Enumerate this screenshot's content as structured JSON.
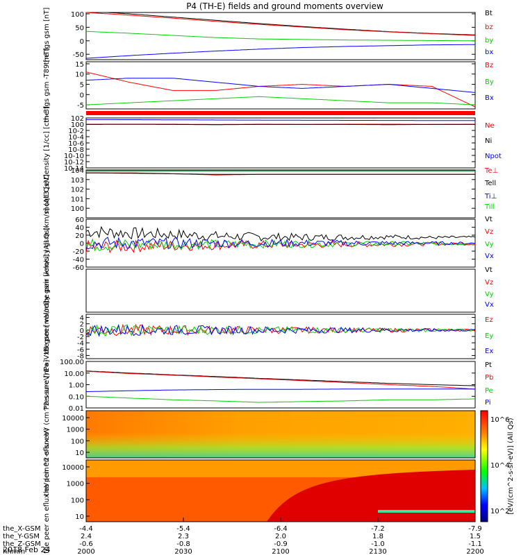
{
  "title": "P4 (TH-E) fields and ground moments overview",
  "date_label": "2018 Feb 24",
  "x_ticks": [
    "2000",
    "2030",
    "2100",
    "2130",
    "2200"
  ],
  "ephemeris": [
    {
      "name": "the_X-GSM",
      "values": [
        "-4.4",
        "-5.4",
        "-6.4",
        "-7.2",
        "-7.9"
      ]
    },
    {
      "name": "the_Y-GSM",
      "values": [
        "2.4",
        "2.3",
        "2.0",
        "1.8",
        "1.5"
      ]
    },
    {
      "name": "the_Z-GSM",
      "values": [
        "-0.6",
        "-0.8",
        "-0.9",
        "-1.0",
        "-1.1"
      ]
    },
    {
      "name": "hhmm",
      "values": [
        "2000",
        "2030",
        "2100",
        "2130",
        "2200"
      ]
    }
  ],
  "colorbar_label": "[eV/(cm^2-s-sr-eV)] (All Qs)",
  "colorbar_ticks": [
    "10^2",
    "10^4",
    "10^6"
  ],
  "colors": {
    "black": "#000000",
    "red": "#ff0000",
    "green": "#00d000",
    "blue": "#0000ff"
  },
  "chart_data": [
    {
      "type": "line",
      "ylabel": "the fgs gsm [nT]",
      "ylim": [
        -70,
        105
      ],
      "yticks": [
        "100",
        "50",
        "0",
        "-50"
      ],
      "ytick_vals": [
        100,
        50,
        0,
        -50
      ],
      "series": [
        {
          "name": "Bt",
          "color": "#000000",
          "values": [
            110,
            100,
            88,
            76,
            64,
            53,
            43,
            34,
            27,
            22
          ]
        },
        {
          "name": "bz",
          "color": "#ff0000",
          "values": [
            105,
            95,
            84,
            72,
            61,
            51,
            41,
            33,
            26,
            20
          ]
        },
        {
          "name": "by",
          "color": "#00d000",
          "values": [
            35,
            28,
            20,
            12,
            7,
            5,
            3,
            2,
            1,
            0
          ]
        },
        {
          "name": "bx",
          "color": "#0000ff",
          "values": [
            -65,
            -55,
            -46,
            -38,
            -31,
            -25,
            -21,
            -18,
            -15,
            -14
          ]
        }
      ]
    },
    {
      "type": "line",
      "ylabel": "the fgs gsm -T89 [nT]",
      "ylim": [
        -7,
        16
      ],
      "yticks": [
        "15",
        "10",
        "5",
        "0",
        "-5"
      ],
      "ytick_vals": [
        15,
        10,
        5,
        0,
        -5
      ],
      "series": [
        {
          "name": "Bz",
          "color": "#ff0000",
          "values": [
            11,
            6,
            2,
            2,
            4,
            5,
            4,
            5,
            4,
            -6
          ]
        },
        {
          "name": "By",
          "color": "#00d000",
          "values": [
            -5,
            -4,
            -3,
            -2,
            -1,
            -2,
            -3,
            -4,
            -4,
            -5
          ]
        },
        {
          "name": "Bx",
          "color": "#0000ff",
          "values": [
            7,
            8,
            8,
            6,
            4,
            3,
            4,
            5,
            3,
            1
          ]
        }
      ]
    },
    {
      "type": "line",
      "ylabel": "Density [1/cc] [cm-3]",
      "log": true,
      "ylim": [
        1e-14,
        100
      ],
      "yticks": [
        "10^2",
        "10^0",
        "10^-2",
        "10^-4",
        "10^-6",
        "10^-8",
        "10^-10",
        "10^-12",
        "10^-14"
      ],
      "ytick_vals": [
        100,
        1,
        0.01,
        0.0001,
        1e-06,
        1e-08,
        1e-10,
        1e-12,
        1e-14
      ],
      "series": [
        {
          "name": "Ne",
          "color": "#ff0000",
          "values": [
            1,
            1,
            1,
            0.8,
            1,
            0.9,
            1,
            1,
            0.9,
            1
          ]
        },
        {
          "name": "Ni",
          "color": "#000000",
          "values": [
            0.8,
            0.9,
            0.8,
            0.7,
            0.8,
            0.8,
            0.8,
            0.7,
            0.8,
            0.8
          ]
        },
        {
          "name": "Npot",
          "color": "#0000ff",
          "values": [
            30,
            28,
            25,
            22,
            20,
            18,
            17,
            16,
            15,
            14
          ]
        }
      ]
    },
    {
      "type": "line",
      "ylabel": "moqt3 [eV]",
      "log": true,
      "ylim": [
        0.1,
        10000
      ],
      "yticks": [
        "10^4",
        "10^3",
        "10^2",
        "10^1",
        "10^0"
      ],
      "ytick_vals": [
        10000,
        1000,
        100,
        10,
        1
      ],
      "series": [
        {
          "name": "Te⊥",
          "color": "#ff0000",
          "values": [
            5000,
            5000,
            4000,
            3000,
            3500,
            3500,
            3500,
            3500,
            3500,
            3500
          ]
        },
        {
          "name": "Tell",
          "color": "#000000",
          "values": [
            5000,
            4500,
            4000,
            3500,
            3500,
            3500,
            3500,
            3500,
            3500,
            3500
          ]
        },
        {
          "name": "Ti⊥",
          "color": "#0000ff",
          "values": [
            9000,
            9000,
            9000,
            9000,
            9000,
            9000,
            9000,
            9000,
            9000,
            9000
          ]
        },
        {
          "name": "Till",
          "color": "#00d000",
          "values": [
            7000,
            7000,
            7000,
            7000,
            7000,
            7000,
            7000,
            7000,
            7000,
            7000
          ]
        }
      ]
    },
    {
      "type": "line",
      "ylabel": "the peir velocity gsm [km/s] (All Qs)",
      "ylim": [
        -60,
        60
      ],
      "yticks": [
        "60",
        "40",
        "20",
        "0",
        "-20",
        "-40",
        "-60"
      ],
      "ytick_vals": [
        60,
        40,
        20,
        0,
        -20,
        -40,
        -60
      ],
      "series": [
        {
          "name": "Vt",
          "color": "#000000",
          "values": [
            30,
            25,
            22,
            18,
            16,
            15,
            15,
            16,
            14,
            15
          ]
        },
        {
          "name": "Vz",
          "color": "#ff0000",
          "values": [
            -10,
            -8,
            -6,
            -5,
            -4,
            -4,
            -3,
            -3,
            -2,
            -2
          ]
        },
        {
          "name": "Vy",
          "color": "#00d000",
          "values": [
            -5,
            -4,
            -3,
            -3,
            -2,
            -2,
            -2,
            -1,
            -1,
            -1
          ]
        },
        {
          "name": "Vx",
          "color": "#0000ff",
          "values": [
            0,
            0,
            0,
            0,
            0,
            0,
            0,
            0,
            0,
            0
          ]
        }
      ]
    },
    {
      "type": "line",
      "ylabel": "the peer velocity gsm [km/s] (All Qs)",
      "series": [
        {
          "name": "Vt",
          "color": "#000000",
          "values": []
        },
        {
          "name": "Vz",
          "color": "#ff0000",
          "values": []
        },
        {
          "name": "Vy",
          "color": "#00d000",
          "values": []
        },
        {
          "name": "Vx",
          "color": "#0000ff",
          "values": []
        }
      ]
    },
    {
      "type": "line",
      "ylabel": "E=-VxB gsm [mV/m]",
      "ylim": [
        -9,
        5
      ],
      "yticks": [
        "4",
        "2",
        "0",
        "-2",
        "-4",
        "-6",
        "-8"
      ],
      "ytick_vals": [
        4,
        2,
        0,
        -2,
        -4,
        -6,
        -8
      ],
      "series": [
        {
          "name": "Ez",
          "color": "#ff0000",
          "values": [
            0,
            0,
            0,
            0,
            0,
            0,
            0,
            0,
            0,
            0
          ]
        },
        {
          "name": "Ey",
          "color": "#00d000",
          "values": [
            0,
            0,
            0,
            0,
            0,
            0,
            0,
            0,
            0,
            0
          ]
        },
        {
          "name": "Ex",
          "color": "#0000ff",
          "values": [
            0,
            0,
            0,
            0,
            0,
            0,
            0,
            0,
            0,
            0
          ]
        }
      ]
    },
    {
      "type": "line",
      "ylabel": "Pressure [nPa]",
      "log": true,
      "ylim": [
        0.01,
        100
      ],
      "yticks": [
        "100.00",
        "10.00",
        "1.00",
        "0.10",
        "0.01"
      ],
      "ytick_vals": [
        100,
        10,
        1,
        0.1,
        0.01
      ],
      "series": [
        {
          "name": "Pt",
          "color": "#000000",
          "values": [
            15,
            10,
            7,
            5,
            3.5,
            2.5,
            1.8,
            1.3,
            1.0,
            0.8
          ]
        },
        {
          "name": "Pb",
          "color": "#ff0000",
          "values": [
            14,
            9,
            6.5,
            4.5,
            3.2,
            2.2,
            1.5,
            1.0,
            0.7,
            0.4
          ]
        },
        {
          "name": "Pe",
          "color": "#00d000",
          "values": [
            0.1,
            0.07,
            0.05,
            0.04,
            0.03,
            0.035,
            0.04,
            0.05,
            0.05,
            0.06
          ]
        },
        {
          "name": "Pi",
          "color": "#0000ff",
          "values": [
            0.25,
            0.3,
            0.35,
            0.38,
            0.4,
            0.4,
            0.42,
            0.42,
            0.42,
            0.42
          ]
        }
      ]
    },
    {
      "type": "heatmap",
      "ylabel": "the peir en eflux eV (cm^2-s-sr-eV)",
      "yticks": [
        "10000",
        "1000",
        "100",
        "10"
      ]
    },
    {
      "type": "heatmap",
      "ylabel": "the peer en eflux eV (cm^2-s-sr-eV)",
      "yticks": [
        "10000",
        "1000",
        "100",
        "10"
      ]
    }
  ]
}
